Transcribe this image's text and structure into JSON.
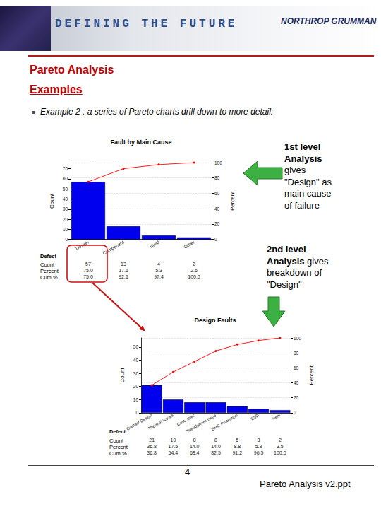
{
  "header": {
    "tagline": "DEFINING THE FUTURE",
    "logo": "NORTHROP GRUMMAN"
  },
  "slide": {
    "title": "Pareto Analysis",
    "subtitle": "Examples",
    "bullet": "Example 2 : a series of Pareto charts drill down to more detail:"
  },
  "annotations": [
    {
      "bold": "1st level Analysis",
      "text": "gives \"Design\" as main cause of failure"
    },
    {
      "bold": "2nd level Analysis",
      "text": "gives breakdown of \"Design\""
    }
  ],
  "footer": {
    "page": 4,
    "file": "Pareto Analysis v2.ppt"
  },
  "chart_data": [
    {
      "type": "bar",
      "title": "Fault by Main Cause",
      "x_label": "Defect",
      "y_label": "Count",
      "y2_label": "Percent",
      "categories": [
        "Design",
        "Component",
        "Build",
        "Other"
      ],
      "series": [
        {
          "name": "Count",
          "type": "bar",
          "color": "#0000ee",
          "values": [
            57,
            13,
            4,
            2
          ]
        },
        {
          "name": "Cum %",
          "type": "line",
          "color": "#ff0000",
          "axis": "y2",
          "marker": "circle",
          "values": [
            75.0,
            92.1,
            97.4,
            100.0
          ],
          "value_labels": [
            "75.0",
            "92.1",
            "97.4",
            "100.0"
          ]
        }
      ],
      "percent": {
        "name": "Percent",
        "values": [
          75.0,
          17.1,
          5.3,
          2.6
        ],
        "value_labels": [
          "75.0",
          "17.1",
          "5.3",
          "2.6"
        ]
      },
      "ylim": [
        0,
        76
      ],
      "yticks": [
        0,
        10,
        20,
        30,
        40,
        50,
        60,
        70
      ],
      "y2lim": [
        0,
        100
      ],
      "y2ticks": [
        0,
        20,
        40,
        60,
        80,
        100
      ],
      "grid": true
    },
    {
      "type": "bar",
      "title": "Design Faults",
      "x_label": "Defect",
      "y_label": "Count",
      "y2_label": "Percent",
      "categories": [
        "Contact Design",
        "Thermal issues",
        "Cust. spec",
        "Transformer issue",
        "EMC Protection",
        "ESD",
        "Item"
      ],
      "series": [
        {
          "name": "Count",
          "type": "bar",
          "color": "#0000ee",
          "values": [
            21,
            10,
            8,
            8,
            5,
            3,
            2
          ]
        },
        {
          "name": "Cum %",
          "type": "line",
          "color": "#ff0000",
          "axis": "y2",
          "marker": "circle",
          "values": [
            36.8,
            54.4,
            68.4,
            82.5,
            91.2,
            96.5,
            100.0
          ],
          "value_labels": [
            "36.8",
            "54.4",
            "68.4",
            "82.5",
            "91.2",
            "96.5",
            "100.0"
          ]
        }
      ],
      "percent": {
        "name": "Percent",
        "values": [
          36.8,
          17.5,
          14.0,
          14.0,
          8.8,
          5.3,
          3.5
        ],
        "value_labels": [
          "36.8",
          "17.5",
          "14.0",
          "14.0",
          "8.8",
          "5.3",
          "3.5"
        ]
      },
      "ylim": [
        0,
        57
      ],
      "yticks": [
        0,
        10,
        20,
        30,
        40,
        50
      ],
      "y2lim": [
        0,
        100
      ],
      "y2ticks": [
        0,
        20,
        40,
        60,
        80,
        100
      ],
      "grid": true
    }
  ]
}
